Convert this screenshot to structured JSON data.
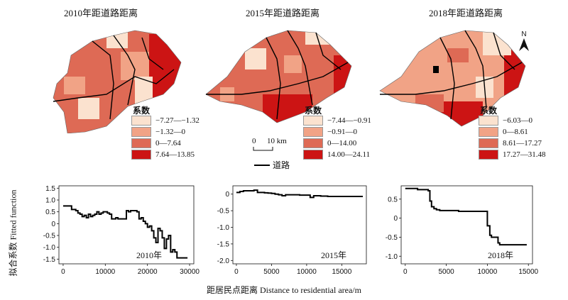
{
  "maps": [
    {
      "title": "2010年距道路距离",
      "legend_title": "系数",
      "legend": [
        {
          "label": "−7.27—−1.32",
          "color": "#fbe2cf"
        },
        {
          "label": "−1.32—0",
          "color": "#f1a386"
        },
        {
          "label": "0—7.64",
          "color": "#de6a55"
        },
        {
          "label": "7.64—13.85",
          "color": "#cc1414"
        }
      ]
    },
    {
      "title": "2015年距道路距离",
      "legend_title": "系数",
      "legend": [
        {
          "label": "−7.44—−0.91",
          "color": "#fbe2cf"
        },
        {
          "label": "−0.91—0",
          "color": "#f1a386"
        },
        {
          "label": "0—14.00",
          "color": "#de6a55"
        },
        {
          "label": "14.00—24.11",
          "color": "#cc1414"
        }
      ]
    },
    {
      "title": "2018年距道路距离",
      "legend_title": "系数",
      "legend": [
        {
          "label": "−6.03—0",
          "color": "#fbe2cf"
        },
        {
          "label": "0—8.61",
          "color": "#f1a386"
        },
        {
          "label": "8.61—17.27",
          "color": "#de6a55"
        },
        {
          "label": "17.27—31.48",
          "color": "#cc1414"
        }
      ]
    }
  ],
  "scale_bar": {
    "zero": "0",
    "label": "10 km"
  },
  "north_arrow": "N",
  "road_legend": "道路",
  "y_axis_title": "拟合系数 Fitted function",
  "x_axis_title": "距居民点距离 Distance to residential area/m",
  "chart_data": [
    {
      "type": "line",
      "year_label": "2010年",
      "xlim": [
        -1000,
        31000
      ],
      "ylim": [
        -1.7,
        1.6
      ],
      "xticks": [
        0,
        10000,
        20000,
        30000
      ],
      "yticks": [
        1.5,
        1.0,
        0.5,
        0.0,
        -0.5,
        -1.0,
        -1.5
      ],
      "ytick_labels": [
        "1.5",
        "1.0",
        "0.5",
        "0",
        "-0.5",
        "-1.0",
        "-1.5"
      ],
      "x": [
        0,
        1500,
        2000,
        3000,
        3500,
        4000,
        4500,
        5000,
        5500,
        6000,
        6500,
        7000,
        7500,
        8000,
        8500,
        9000,
        9500,
        10000,
        10500,
        11000,
        11500,
        12000,
        12500,
        13000,
        14000,
        15000,
        15500,
        16000,
        17500,
        18000,
        18500,
        19000,
        19500,
        20000,
        20500,
        21000,
        21500,
        22000,
        22500,
        23000,
        23500,
        24000,
        24500,
        25000,
        25500,
        26000,
        26500,
        27000,
        27500,
        29500
      ],
      "y": [
        0.75,
        0.75,
        0.6,
        0.55,
        0.45,
        0.4,
        0.3,
        0.35,
        0.25,
        0.4,
        0.3,
        0.35,
        0.4,
        0.5,
        0.4,
        0.45,
        0.5,
        0.5,
        0.45,
        0.4,
        0.2,
        0.2,
        0.25,
        0.2,
        0.2,
        0.55,
        0.5,
        0.55,
        0.5,
        0.2,
        0.25,
        0.1,
        0.0,
        -0.15,
        -0.1,
        -0.3,
        -0.6,
        -0.8,
        -0.2,
        -0.3,
        -0.6,
        -1.05,
        -0.65,
        -0.5,
        -1.2,
        -1.1,
        -1.2,
        -1.45,
        -1.45,
        -1.45
      ]
    },
    {
      "type": "line",
      "year_label": "2015年",
      "xlim": [
        -500,
        18500
      ],
      "ylim": [
        -2.1,
        0.25
      ],
      "xticks": [
        0,
        5000,
        10000,
        15000
      ],
      "yticks": [
        0.0,
        -0.5,
        -1.0,
        -1.5,
        -2.0
      ],
      "ytick_labels": [
        "0",
        "-0.5",
        "-1.0",
        "-1.5",
        "-2.0"
      ],
      "x": [
        0,
        500,
        1000,
        2000,
        2500,
        3000,
        3500,
        4000,
        4500,
        5000,
        5500,
        6000,
        6500,
        7000,
        8000,
        9000,
        10000,
        10500,
        11000,
        11500,
        12000,
        13000,
        15000,
        18000
      ],
      "y": [
        0.05,
        0.08,
        0.1,
        0.1,
        0.12,
        0.05,
        0.05,
        0.04,
        0.03,
        0.02,
        0.0,
        -0.02,
        -0.05,
        -0.02,
        -0.02,
        -0.03,
        -0.03,
        -0.1,
        -0.05,
        -0.05,
        -0.06,
        -0.07,
        -0.07,
        -0.07
      ]
    },
    {
      "type": "line",
      "year_label": "2018年",
      "xlim": [
        -500,
        15500
      ],
      "ylim": [
        -1.2,
        0.85
      ],
      "xticks": [
        0,
        5000,
        10000,
        15000
      ],
      "yticks": [
        0.5,
        0.0,
        -0.5,
        -1.0
      ],
      "ytick_labels": [
        "0.5",
        "0",
        "-0.5",
        "-1.0"
      ],
      "x": [
        0,
        1200,
        1500,
        2800,
        3000,
        3200,
        3500,
        3800,
        4200,
        5000,
        6500,
        8000,
        9800,
        10000,
        10300,
        10500,
        11000,
        11300,
        11500,
        13000,
        14800
      ],
      "y": [
        0.78,
        0.78,
        0.75,
        0.72,
        0.45,
        0.3,
        0.25,
        0.22,
        0.2,
        0.2,
        0.18,
        0.18,
        0.18,
        -0.2,
        -0.45,
        -0.5,
        -0.5,
        -0.65,
        -0.7,
        -0.7,
        -0.7
      ]
    }
  ]
}
